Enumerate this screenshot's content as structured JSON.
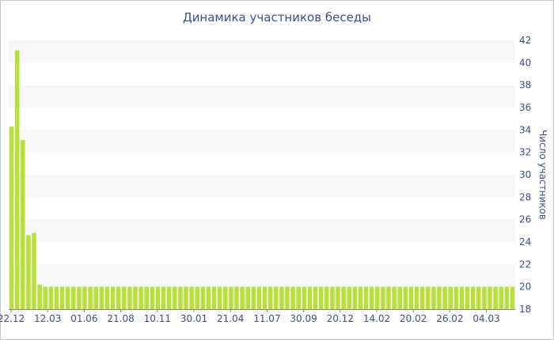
{
  "chart_data": {
    "type": "bar",
    "title": "Динамика участников беседы",
    "xlabel": "",
    "ylabel": "Число участников",
    "ylim": [
      18,
      42
    ],
    "yticks": [
      18,
      20,
      22,
      24,
      26,
      28,
      30,
      32,
      34,
      36,
      38,
      40,
      42
    ],
    "x_tick_labels": [
      "22.12",
      "12.03",
      "01.06",
      "21.08",
      "10.11",
      "30.01",
      "21.04",
      "11.07",
      "30.09",
      "20.12",
      "14.02",
      "20.02",
      "26.02",
      "04.03"
    ],
    "grid": "alternating horizontal bands",
    "y_axis_position": "right",
    "bar_color": "#b8e03a",
    "band_color": "#f7f7f7",
    "text_color": "#3a4f8c",
    "values": [
      34.3,
      41.1,
      33.1,
      24.6,
      24.8,
      20.2,
      20,
      20,
      20,
      20,
      20,
      20,
      20,
      20,
      20,
      20,
      20,
      20,
      20,
      20,
      20,
      20,
      20,
      20,
      20,
      20,
      20,
      20,
      20,
      20,
      20,
      20,
      20,
      20,
      20,
      20,
      20,
      20,
      20,
      20,
      20,
      20,
      20,
      20,
      20,
      20,
      20,
      20,
      20,
      20,
      20,
      20,
      20,
      20,
      20,
      20,
      20,
      20,
      20,
      20,
      20,
      20,
      20,
      20,
      20,
      20,
      20,
      20,
      20,
      20,
      20,
      20,
      20,
      20,
      20,
      20,
      20,
      20,
      20,
      20,
      20,
      20,
      20,
      20,
      20,
      20,
      20,
      20,
      20,
      20
    ]
  }
}
